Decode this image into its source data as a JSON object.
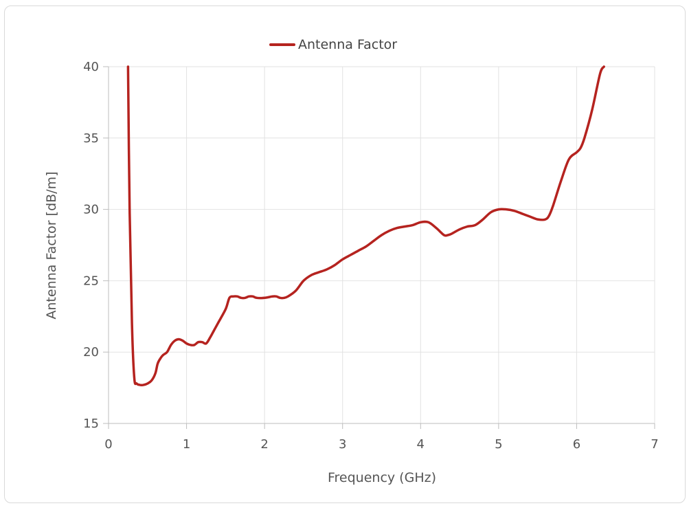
{
  "chart_data": {
    "type": "line",
    "title": "",
    "xlabel": "Frequency (GHz)",
    "ylabel": "Antenna Factor [dB/m]",
    "xlim": [
      0,
      7
    ],
    "ylim": [
      15,
      40
    ],
    "xticks": [
      "0",
      "1",
      "2",
      "3",
      "4",
      "5",
      "6",
      "7"
    ],
    "yticks": [
      "15",
      "20",
      "25",
      "30",
      "35",
      "40"
    ],
    "grid": true,
    "legend_position": "top-center",
    "series": [
      {
        "name": "Antenna Factor",
        "color": "#b5231f",
        "x": [
          0.25,
          0.27,
          0.3,
          0.33,
          0.36,
          0.4,
          0.45,
          0.5,
          0.55,
          0.6,
          0.63,
          0.67,
          0.7,
          0.75,
          0.8,
          0.85,
          0.9,
          0.95,
          1.0,
          1.05,
          1.1,
          1.15,
          1.2,
          1.25,
          1.3,
          1.35,
          1.4,
          1.5,
          1.55,
          1.6,
          1.65,
          1.7,
          1.75,
          1.8,
          1.85,
          1.9,
          2.0,
          2.1,
          2.15,
          2.2,
          2.25,
          2.3,
          2.4,
          2.5,
          2.6,
          2.7,
          2.8,
          2.9,
          3.0,
          3.1,
          3.2,
          3.3,
          3.4,
          3.5,
          3.6,
          3.7,
          3.8,
          3.9,
          4.0,
          4.1,
          4.2,
          4.3,
          4.35,
          4.4,
          4.5,
          4.6,
          4.7,
          4.8,
          4.9,
          5.0,
          5.1,
          5.2,
          5.3,
          5.4,
          5.5,
          5.6,
          5.65,
          5.7,
          5.8,
          5.9,
          6.0,
          6.05,
          6.1,
          6.2,
          6.3,
          6.35
        ],
        "y": [
          40.0,
          30.0,
          22.0,
          18.2,
          17.8,
          17.7,
          17.7,
          17.8,
          18.0,
          18.5,
          19.2,
          19.6,
          19.8,
          20.0,
          20.5,
          20.8,
          20.9,
          20.8,
          20.6,
          20.5,
          20.5,
          20.7,
          20.7,
          20.6,
          21.0,
          21.5,
          22.0,
          23.0,
          23.8,
          23.9,
          23.9,
          23.8,
          23.8,
          23.9,
          23.9,
          23.8,
          23.8,
          23.9,
          23.9,
          23.8,
          23.8,
          23.9,
          24.3,
          25.0,
          25.4,
          25.6,
          25.8,
          26.1,
          26.5,
          26.8,
          27.1,
          27.4,
          27.8,
          28.2,
          28.5,
          28.7,
          28.8,
          28.9,
          29.1,
          29.1,
          28.7,
          28.2,
          28.2,
          28.3,
          28.6,
          28.8,
          28.9,
          29.3,
          29.8,
          30.0,
          30.0,
          29.9,
          29.7,
          29.5,
          29.3,
          29.3,
          29.6,
          30.3,
          32.0,
          33.5,
          34.0,
          34.3,
          35.0,
          37.0,
          39.5,
          40.0
        ]
      }
    ]
  }
}
